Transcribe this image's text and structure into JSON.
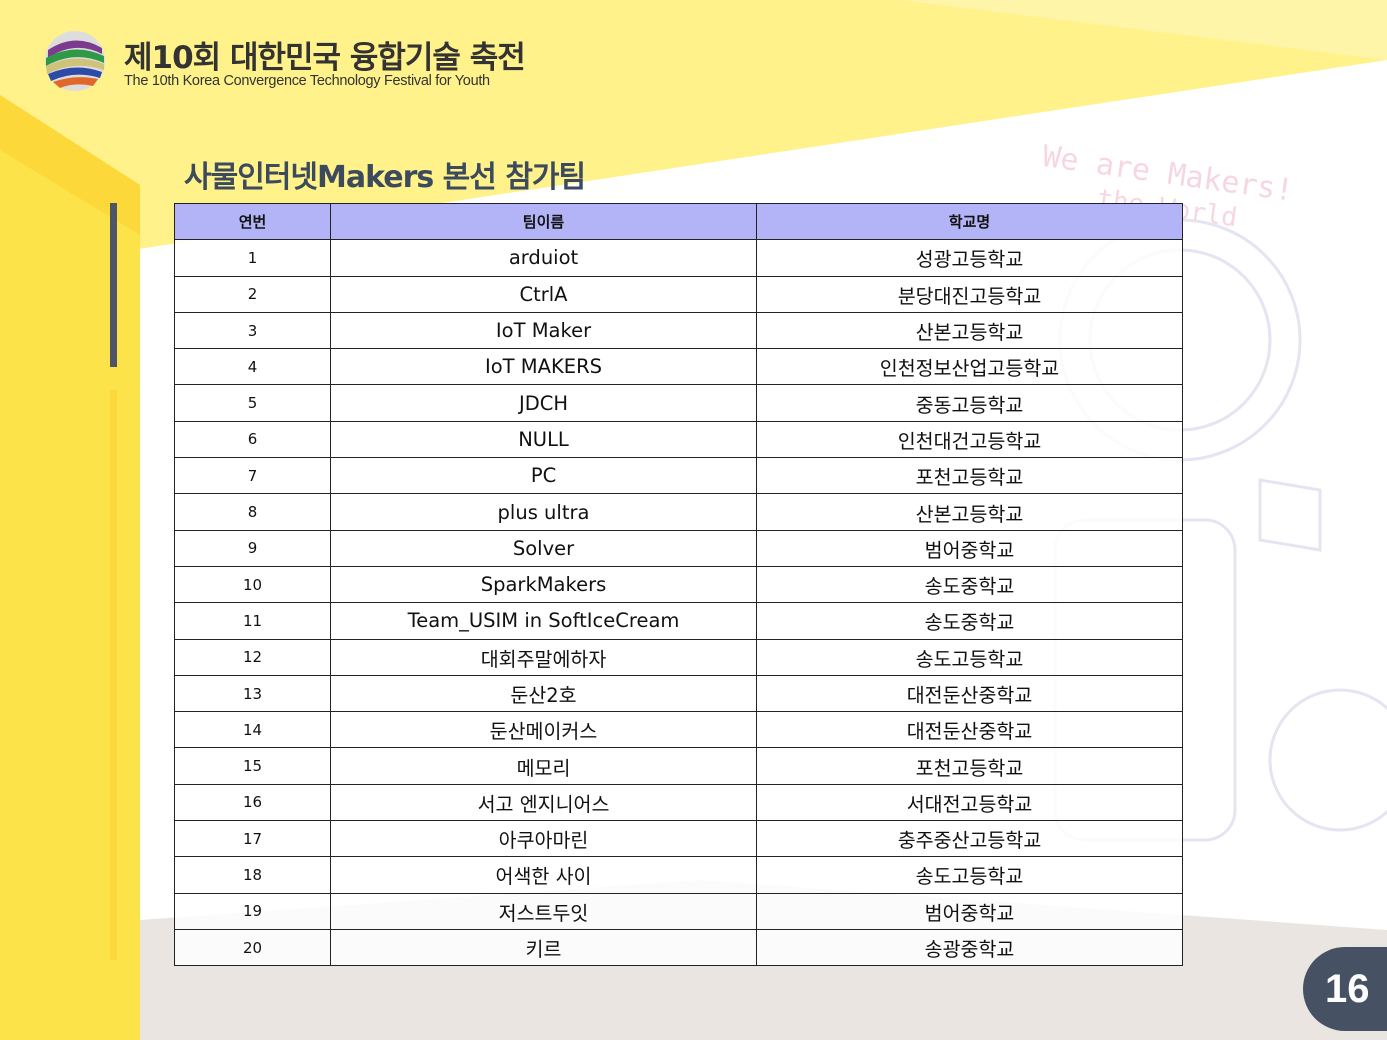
{
  "header": {
    "title_ko": "제10회 대한민국 융합기술 축전",
    "title_en": "The 10th Korea Convergence Technology Festival for Youth"
  },
  "page_title": "사물인터넷Makers 본선 참가팀",
  "watermark": {
    "line1": "We are Makers!",
    "line2": "the World"
  },
  "colors": {
    "header_bg": "#b3b3f8",
    "accent_yellow": "#fde34a",
    "page_badge": "#465264"
  },
  "table": {
    "headers": [
      "연번",
      "팀이름",
      "학교명"
    ],
    "rows": [
      [
        "1",
        "arduiot",
        "성광고등학교"
      ],
      [
        "2",
        "CtrlA",
        "분당대진고등학교"
      ],
      [
        "3",
        "IoT Maker",
        "산본고등학교"
      ],
      [
        "4",
        "IoT MAKERS",
        "인천정보산업고등학교"
      ],
      [
        "5",
        "JDCH",
        "중동고등학교"
      ],
      [
        "6",
        "NULL",
        "인천대건고등학교"
      ],
      [
        "7",
        "PC",
        "포천고등학교"
      ],
      [
        "8",
        "plus ultra",
        "산본고등학교"
      ],
      [
        "9",
        "Solver",
        "범어중학교"
      ],
      [
        "10",
        "SparkMakers",
        "송도중학교"
      ],
      [
        "11",
        "Team_USIM in SoftIceCream",
        "송도중학교"
      ],
      [
        "12",
        "대회주말에하자",
        "송도고등학교"
      ],
      [
        "13",
        "둔산2호",
        "대전둔산중학교"
      ],
      [
        "14",
        "둔산메이커스",
        "대전둔산중학교"
      ],
      [
        "15",
        "메모리",
        "포천고등학교"
      ],
      [
        "16",
        "서고 엔지니어스",
        "서대전고등학교"
      ],
      [
        "17",
        "아쿠아마린",
        "충주중산고등학교"
      ],
      [
        "18",
        "어색한 사이",
        "송도고등학교"
      ],
      [
        "19",
        "저스트두잇",
        "범어중학교"
      ],
      [
        "20",
        "키르",
        "송광중학교"
      ]
    ]
  },
  "page_number": "16"
}
